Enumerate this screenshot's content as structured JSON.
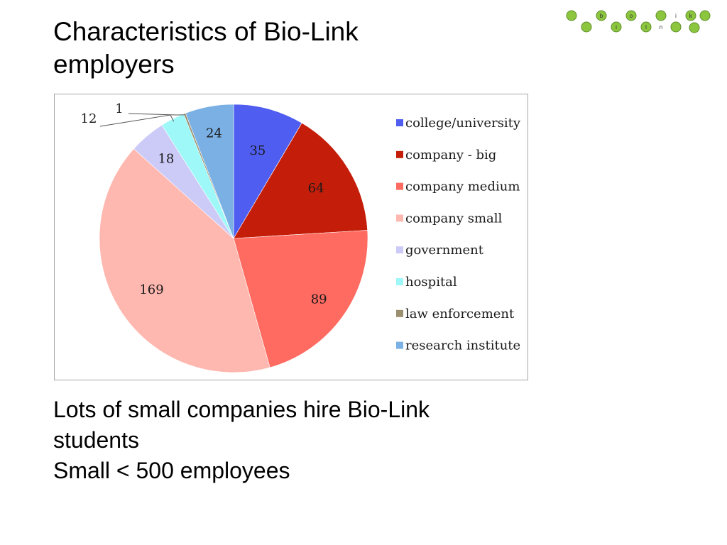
{
  "slide": {
    "title_lines": [
      "Characteristics of Bio-Link",
      "employers"
    ],
    "caption_lines": [
      "Lots of small companies hire Bio-Link",
      "students",
      "Small < 500 employees"
    ]
  },
  "logo": {
    "letters": [
      "b",
      "i",
      "o",
      "l",
      "i",
      "n",
      "k"
    ],
    "bead_color": "#8cc63f"
  },
  "chart_data": {
    "type": "pie",
    "title": "",
    "legend_position": "right",
    "categories": [
      "college/university",
      "company - big",
      "company medium",
      "company small",
      "government",
      "hospital",
      "law enforcement",
      "research institute"
    ],
    "values": [
      35,
      64,
      89,
      169,
      18,
      12,
      1,
      24
    ],
    "colors": [
      "#4f5ef0",
      "#c41e0a",
      "#ff6b61",
      "#ffb8b0",
      "#cccaf7",
      "#9ef8f8",
      "#9a9070",
      "#7ab0e4"
    ]
  }
}
